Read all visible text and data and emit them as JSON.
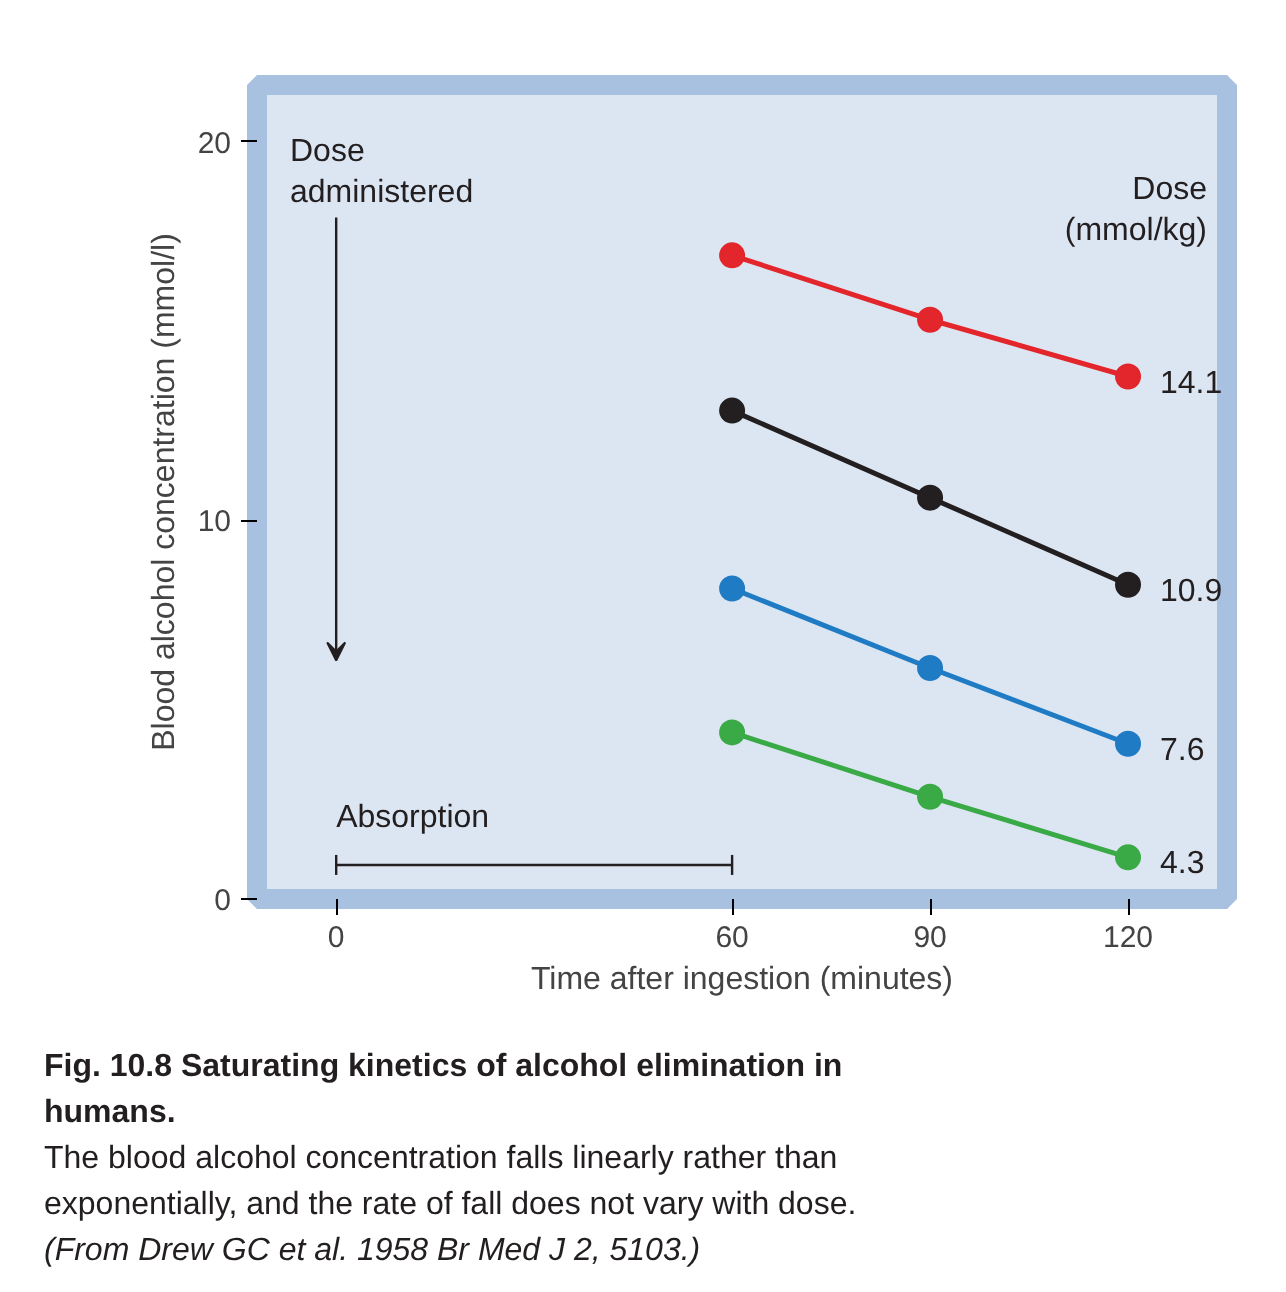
{
  "chart_data": {
    "type": "line",
    "title": "Fig. 10.8  Saturating kinetics of alcohol elimination in humans.",
    "xlabel": "Time after ingestion (minutes)",
    "ylabel": "Blood alcohol concentration (mmol/l)",
    "legend_title": "Dose\n(mmol/kg)",
    "x": [
      60,
      90,
      120
    ],
    "series": [
      {
        "name": "14.1",
        "color": "#e2262b",
        "values": [
          17.0,
          15.3,
          13.8
        ]
      },
      {
        "name": "10.9",
        "color": "#231f20",
        "values": [
          12.9,
          10.6,
          8.3
        ]
      },
      {
        "name": "7.6",
        "color": "#1f7bc4",
        "values": [
          8.2,
          6.1,
          4.1
        ]
      },
      {
        "name": "4.3",
        "color": "#3aaa47",
        "values": [
          4.4,
          2.7,
          1.1
        ]
      }
    ],
    "xlim": [
      -12,
      135
    ],
    "xticks": [
      0,
      60,
      90,
      120
    ],
    "ylim": [
      0,
      21.5
    ],
    "yticks": [
      0,
      10,
      20
    ],
    "marker": "circle",
    "line_style": "solid",
    "grid": false,
    "annotations": [
      "Dose\nadministered",
      "Absorption",
      "The blood alcohol concentration falls linearly rather than exponentially, and the rate of fall does not vary with dose.",
      "(From Drew GC et al. 1958 Br Med J 2, 5103.)"
    ]
  }
}
